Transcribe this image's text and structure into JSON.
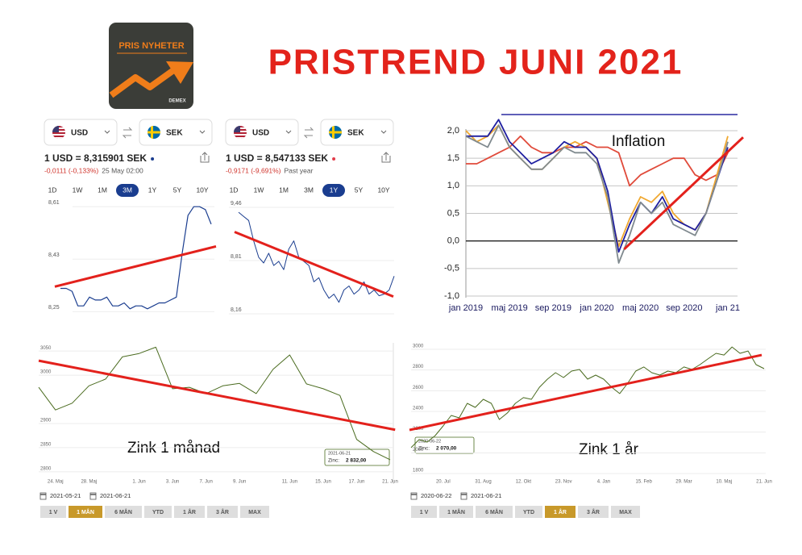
{
  "logo": {
    "title": "PRIS NYHETER",
    "brand": "DEMEX"
  },
  "title": "PRISTREND JUNI 2021",
  "chart_data": [
    {
      "type": "line",
      "from": "USD",
      "to": "SEK",
      "rate": "1 USD = 8,315901 SEK",
      "change": "-0,0111 (-0,133%)",
      "time": "25 May 02:00",
      "ranges": [
        "1D",
        "1W",
        "1M",
        "3M",
        "1Y",
        "5Y",
        "10Y"
      ],
      "selected_range": 3,
      "color": "#1a3d8f",
      "values": [
        8.33,
        8.33,
        8.32,
        8.27,
        8.27,
        8.3,
        8.29,
        8.29,
        8.3,
        8.27,
        8.27,
        8.28,
        8.26,
        8.27,
        8.27,
        8.26,
        8.27,
        8.28,
        8.28,
        8.29,
        8.3,
        8.45,
        8.58,
        8.61,
        8.61,
        8.6,
        8.55
      ],
      "ylim": [
        8.24,
        8.63
      ],
      "yticks": [
        {
          "value": 8.61,
          "label": "8,61"
        },
        {
          "value": 8.43,
          "label": "8,43"
        },
        {
          "value": 8.25,
          "label": "8,25"
        }
      ],
      "grid": true,
      "trend": {
        "color": "#e3211c",
        "values": [
          8.336,
          8.474
        ]
      }
    },
    {
      "type": "line",
      "from": "USD",
      "to": "SEK",
      "rate": "1 USD = 8,547133 SEK",
      "change": "-0,9171 (-9,691%)",
      "time": "Past year",
      "ranges": [
        "1D",
        "1W",
        "1M",
        "3M",
        "1Y",
        "5Y",
        "10Y"
      ],
      "selected_range": 4,
      "color": "#1a3d8f",
      "values": [
        9.4,
        9.35,
        9.3,
        9.05,
        8.85,
        8.78,
        8.9,
        8.75,
        8.8,
        8.7,
        8.95,
        9.05,
        8.85,
        8.8,
        8.75,
        8.55,
        8.6,
        8.45,
        8.35,
        8.4,
        8.3,
        8.45,
        8.5,
        8.4,
        8.45,
        8.55,
        8.4,
        8.45,
        8.38,
        8.4,
        8.45,
        8.62
      ],
      "ylim": [
        8.13,
        9.48
      ],
      "yticks": [
        {
          "value": 9.46,
          "label": "9,46"
        },
        {
          "value": 8.81,
          "label": "8,81"
        },
        {
          "value": 8.16,
          "label": "8,16"
        }
      ],
      "grid": true,
      "trend": {
        "color": "#e3211c",
        "values": [
          9.16,
          8.37
        ]
      }
    },
    {
      "type": "line",
      "label": "Inflation",
      "categories": [
        "jan 2019",
        null,
        null,
        null,
        "maj 2019",
        null,
        null,
        null,
        "sep 2019",
        null,
        null,
        null,
        "jan 2020",
        null,
        null,
        null,
        "maj 2020",
        null,
        null,
        null,
        "sep 2020",
        null,
        null,
        null,
        "jan 21"
      ],
      "series": [
        {
          "color": "#e04a3a",
          "values": [
            1.4,
            1.4,
            1.5,
            1.6,
            1.7,
            1.9,
            1.7,
            1.6,
            1.6,
            1.7,
            1.7,
            1.8,
            1.7,
            1.7,
            1.6,
            1.0,
            1.2,
            1.3,
            1.4,
            1.5,
            1.5,
            1.2,
            1.1,
            1.2,
            1.6
          ]
        },
        {
          "color": "#f0a830",
          "values": [
            2.0,
            1.8,
            1.9,
            2.1,
            1.7,
            1.5,
            1.3,
            1.3,
            1.5,
            1.7,
            1.8,
            1.7,
            1.5,
            0.7,
            -0.1,
            0.4,
            0.8,
            0.7,
            0.9,
            0.5,
            0.3,
            0.2,
            0.5,
            1.2,
            1.9
          ]
        },
        {
          "color": "#1f1fa0",
          "values": [
            1.9,
            1.9,
            1.9,
            2.2,
            1.8,
            1.6,
            1.4,
            1.5,
            1.6,
            1.8,
            1.7,
            1.7,
            1.5,
            0.9,
            -0.2,
            0.3,
            0.7,
            0.5,
            0.8,
            0.4,
            0.3,
            0.2,
            0.5,
            1.1,
            1.7
          ]
        },
        {
          "color": "#808a8f",
          "values": [
            1.9,
            1.8,
            1.7,
            2.1,
            1.7,
            1.5,
            1.3,
            1.3,
            1.5,
            1.7,
            1.6,
            1.6,
            1.4,
            0.8,
            -0.4,
            0.1,
            0.7,
            0.5,
            0.7,
            0.3,
            0.2,
            0.1,
            0.5,
            1.1,
            1.8
          ]
        }
      ],
      "ylim": [
        -1,
        2
      ],
      "yticks": [
        {
          "value": 2,
          "label": "2,0"
        },
        {
          "value": 1.5,
          "label": "1,5"
        },
        {
          "value": 1,
          "label": "1,0"
        },
        {
          "value": 0.5,
          "label": "0,5"
        },
        {
          "value": 0,
          "label": "0,0"
        },
        {
          "value": -0.5,
          "label": "-0,5"
        },
        {
          "value": -1,
          "label": "-1,0"
        }
      ],
      "grid": true,
      "trend": {
        "color": "#e3211c",
        "x": [
          14.5,
          25.4
        ],
        "values": [
          -0.15,
          1.88
        ]
      }
    },
    {
      "type": "line",
      "label": "Zink 1 månad",
      "color": "#4a6b1f",
      "categories": [
        null,
        "24. Maj",
        null,
        "28. Maj",
        null,
        null,
        "1. Jun",
        null,
        "3. Jun",
        null,
        "7. Jun",
        null,
        "9. Jun",
        null,
        null,
        "11. Jun",
        null,
        "15. Jun",
        null,
        "17. Jun",
        null,
        "21. Jun"
      ],
      "values": [
        2975,
        2928,
        2942,
        2978,
        2992,
        3038,
        3045,
        3058,
        2972,
        2975,
        2962,
        2978,
        2983,
        2962,
        3012,
        3042,
        2982,
        2972,
        2958,
        2867,
        2842,
        2825
      ],
      "ylim": [
        2788,
        3062
      ],
      "yticks": [
        3050,
        3000,
        2900,
        2850,
        2800
      ],
      "grid": true,
      "trend": {
        "color": "#e3211c",
        "x": [
          0,
          21.3
        ],
        "values": [
          3030,
          2887
        ]
      },
      "tooltip": {
        "date": "2021-06-21",
        "name": "Zinc:",
        "value": "2 832,00"
      },
      "dates": [
        "2021-05-21",
        "2021-06-21"
      ],
      "ranges": [
        "1 V",
        "1 MÅN",
        "6 MÅN",
        "YTD",
        "1 ÅR",
        "3 ÅR",
        "MAX"
      ],
      "selected_range": 1
    },
    {
      "type": "line",
      "label": "Zink 1 år",
      "color": "#4a6b1f",
      "categories": [
        null,
        null,
        null,
        null,
        "20. Jul",
        null,
        null,
        null,
        null,
        "31. Aug",
        null,
        null,
        null,
        null,
        "12. Okt",
        null,
        null,
        null,
        null,
        "23. Nov",
        null,
        null,
        null,
        null,
        "4. Jan",
        null,
        null,
        null,
        null,
        "15. Feb",
        null,
        null,
        null,
        null,
        "29. Mar",
        null,
        null,
        null,
        null,
        "10. Maj",
        null,
        null,
        null,
        null,
        "21. Jun"
      ],
      "values": [
        2050,
        2128,
        2104,
        2166,
        2260,
        2361,
        2338,
        2478,
        2439,
        2517,
        2478,
        2322,
        2385,
        2478,
        2533,
        2517,
        2634,
        2712,
        2774,
        2727,
        2790,
        2805,
        2712,
        2751,
        2712,
        2634,
        2572,
        2673,
        2790,
        2829,
        2774,
        2751,
        2790,
        2774,
        2829,
        2805,
        2852,
        2907,
        2961,
        2945,
        3023,
        2961,
        2984,
        2852,
        2813
      ],
      "ylim": [
        1761,
        3039
      ],
      "yticks": [
        3000,
        2800,
        2600,
        2400,
        2200,
        2000,
        1800
      ],
      "grid": true,
      "trend": {
        "color": "#e3211c",
        "x": [
          -0.2,
          43.7
        ],
        "values": [
          2221,
          2945
        ]
      },
      "tooltip": {
        "date": "2020-06-22",
        "name": "Zinc:",
        "value": "2 070,00"
      },
      "dates": [
        "2020-06-22",
        "2021-06-21"
      ],
      "ranges": [
        "1 V",
        "1 MÅN",
        "6 MÅN",
        "YTD",
        "1 ÅR",
        "3 ÅR",
        "MAX"
      ],
      "selected_range": 4
    }
  ]
}
